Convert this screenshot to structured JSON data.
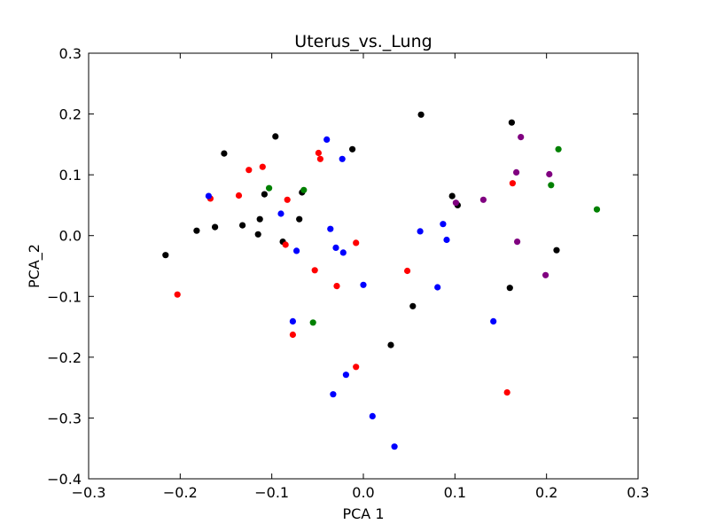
{
  "chart_data": {
    "type": "scatter",
    "title": "Uterus_vs._Lung",
    "xlabel": "PCA 1",
    "ylabel": "PCA_2",
    "xlim": [
      -0.3,
      0.3
    ],
    "ylim": [
      -0.4,
      0.3
    ],
    "xticks": [
      -0.3,
      -0.2,
      -0.1,
      0.0,
      0.1,
      0.2,
      0.3
    ],
    "yticks": [
      -0.4,
      -0.3,
      -0.2,
      -0.1,
      0.0,
      0.1,
      0.2,
      0.3
    ],
    "xtick_labels": [
      "−0.3",
      "−0.2",
      "−0.1",
      "0.0",
      "0.1",
      "0.2",
      "0.3"
    ],
    "ytick_labels": [
      "−0.4",
      "−0.3",
      "−0.2",
      "−0.1",
      "0.0",
      "0.1",
      "0.2",
      "0.3"
    ],
    "grid": false,
    "series": [
      {
        "color": "#000000",
        "points": [
          [
            -0.216,
            -0.032
          ],
          [
            -0.182,
            0.008
          ],
          [
            -0.162,
            0.014
          ],
          [
            -0.152,
            0.135
          ],
          [
            -0.132,
            0.017
          ],
          [
            -0.115,
            0.002
          ],
          [
            -0.113,
            0.027
          ],
          [
            -0.108,
            0.068
          ],
          [
            -0.096,
            0.163
          ],
          [
            -0.088,
            -0.01
          ],
          [
            -0.07,
            0.027
          ],
          [
            -0.067,
            0.071
          ],
          [
            -0.012,
            0.142
          ],
          [
            0.03,
            -0.18
          ],
          [
            0.054,
            -0.116
          ],
          [
            0.063,
            0.199
          ],
          [
            0.097,
            0.065
          ],
          [
            0.103,
            0.05
          ],
          [
            0.16,
            -0.086
          ],
          [
            0.162,
            0.186
          ],
          [
            0.211,
            -0.024
          ]
        ]
      },
      {
        "color": "#ff0000",
        "points": [
          [
            -0.203,
            -0.097
          ],
          [
            -0.167,
            0.061
          ],
          [
            -0.136,
            0.066
          ],
          [
            -0.125,
            0.108
          ],
          [
            -0.11,
            0.113
          ],
          [
            -0.085,
            -0.015
          ],
          [
            -0.083,
            0.059
          ],
          [
            -0.077,
            -0.163
          ],
          [
            -0.053,
            -0.057
          ],
          [
            -0.049,
            0.136
          ],
          [
            -0.047,
            0.126
          ],
          [
            -0.029,
            -0.083
          ],
          [
            -0.008,
            -0.012
          ],
          [
            -0.008,
            -0.216
          ],
          [
            0.048,
            -0.058
          ],
          [
            0.157,
            -0.258
          ],
          [
            0.163,
            0.086
          ]
        ]
      },
      {
        "color": "#0000ff",
        "points": [
          [
            -0.169,
            0.065
          ],
          [
            -0.09,
            0.036
          ],
          [
            -0.077,
            -0.141
          ],
          [
            -0.073,
            -0.025
          ],
          [
            -0.04,
            0.158
          ],
          [
            -0.036,
            0.011
          ],
          [
            -0.033,
            -0.261
          ],
          [
            -0.03,
            -0.02
          ],
          [
            -0.023,
            0.126
          ],
          [
            -0.022,
            -0.028
          ],
          [
            -0.019,
            -0.229
          ],
          [
            0.0,
            -0.081
          ],
          [
            0.01,
            -0.297
          ],
          [
            0.034,
            -0.347
          ],
          [
            0.062,
            0.007
          ],
          [
            0.081,
            -0.085
          ],
          [
            0.087,
            0.019
          ],
          [
            0.091,
            -0.007
          ],
          [
            0.142,
            -0.141
          ]
        ]
      },
      {
        "color": "#008000",
        "points": [
          [
            -0.103,
            0.078
          ],
          [
            -0.065,
            0.075
          ],
          [
            -0.055,
            -0.143
          ],
          [
            0.205,
            0.083
          ],
          [
            0.213,
            0.142
          ],
          [
            0.255,
            0.043
          ]
        ]
      },
      {
        "color": "#800080",
        "points": [
          [
            0.101,
            0.054
          ],
          [
            0.131,
            0.059
          ],
          [
            0.167,
            0.104
          ],
          [
            0.168,
            -0.01
          ],
          [
            0.172,
            0.162
          ],
          [
            0.199,
            -0.065
          ],
          [
            0.203,
            0.101
          ]
        ]
      }
    ]
  }
}
